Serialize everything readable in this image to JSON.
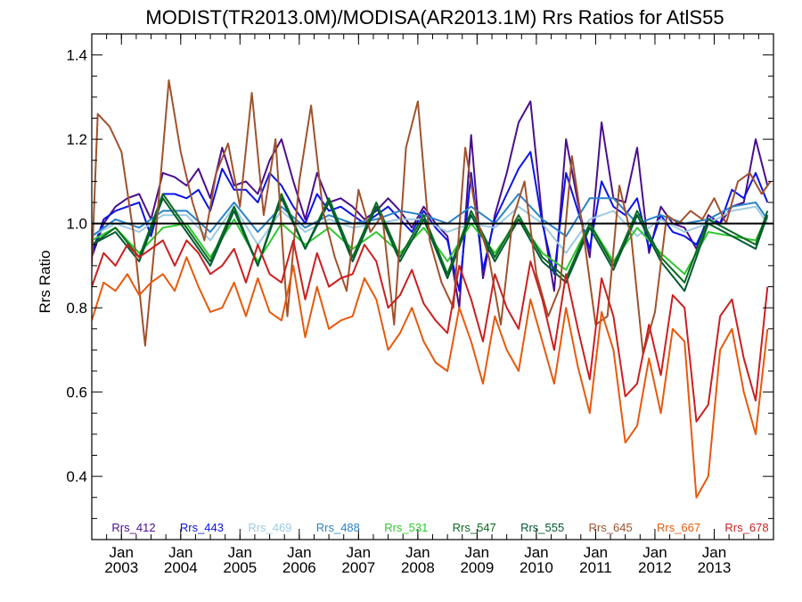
{
  "chart_data": {
    "type": "line",
    "title": "MODIST(TR2013.0M)/MODISA(AR2013.1M)  Rrs Ratios for AtlS55",
    "ylabel": "Rrs Ratio",
    "xlabel": "",
    "xlim": [
      2002.5,
      2014.0
    ],
    "ylim": [
      0.25,
      1.45
    ],
    "yticks": [
      0.4,
      0.6,
      0.8,
      1.0,
      1.2,
      1.4
    ],
    "ytick_labels": [
      "0.4",
      "0.6",
      "0.8",
      "1.0",
      "1.2",
      "1.4"
    ],
    "xticks": [
      {
        "x": 2003,
        "month": "Jan",
        "year": "2003"
      },
      {
        "x": 2004,
        "month": "Jan",
        "year": "2004"
      },
      {
        "x": 2005,
        "month": "Jan",
        "year": "2005"
      },
      {
        "x": 2006,
        "month": "Jan",
        "year": "2006"
      },
      {
        "x": 2007,
        "month": "Jan",
        "year": "2007"
      },
      {
        "x": 2008,
        "month": "Jan",
        "year": "2008"
      },
      {
        "x": 2009,
        "month": "Jan",
        "year": "2009"
      },
      {
        "x": 2010,
        "month": "Jan",
        "year": "2010"
      },
      {
        "x": 2011,
        "month": "Jan",
        "year": "2011"
      },
      {
        "x": 2012,
        "month": "Jan",
        "year": "2012"
      },
      {
        "x": 2013,
        "month": "Jan",
        "year": "2013"
      }
    ],
    "reference_line": 1.0,
    "grid": false,
    "legend_position": "bottom",
    "series": [
      {
        "name": "Rrs_412",
        "color": "#4b0f8c",
        "x": [
          2002.5,
          2002.7,
          2002.9,
          2003.1,
          2003.3,
          2003.5,
          2003.7,
          2003.9,
          2004.1,
          2004.3,
          2004.5,
          2004.7,
          2004.9,
          2005.1,
          2005.3,
          2005.5,
          2005.7,
          2005.9,
          2006.1,
          2006.3,
          2006.5,
          2006.7,
          2006.9,
          2007.1,
          2007.3,
          2007.5,
          2007.7,
          2007.9,
          2008.1,
          2008.3,
          2008.5,
          2008.7,
          2008.9,
          2009.1,
          2009.3,
          2009.5,
          2009.7,
          2009.9,
          2010.1,
          2010.3,
          2010.5,
          2010.7,
          2010.9,
          2011.1,
          2011.3,
          2011.5,
          2011.7,
          2011.9,
          2012.1,
          2012.3,
          2012.5,
          2012.7,
          2012.9,
          2013.1,
          2013.3,
          2013.5,
          2013.7,
          2013.9
        ],
        "y": [
          0.92,
          1.0,
          1.04,
          1.06,
          1.07,
          1.01,
          1.12,
          1.11,
          1.09,
          1.13,
          1.06,
          1.18,
          1.09,
          1.1,
          1.07,
          1.15,
          1.2,
          1.1,
          1.01,
          1.12,
          1.05,
          1.06,
          1.04,
          1.01,
          1.03,
          1.06,
          1.03,
          0.99,
          1.04,
          1.0,
          0.97,
          0.8,
          1.21,
          0.87,
          1.02,
          1.12,
          1.24,
          1.29,
          1.01,
          0.84,
          1.2,
          1.05,
          0.92,
          1.24,
          1.06,
          1.05,
          1.18,
          0.93,
          1.04,
          1.0,
          0.99,
          0.94,
          1.02,
          1.0,
          1.04,
          1.05,
          1.2,
          1.09
        ]
      },
      {
        "name": "Rrs_443",
        "color": "#0a14e6",
        "x": [
          2002.5,
          2002.7,
          2002.9,
          2003.1,
          2003.3,
          2003.5,
          2003.7,
          2003.9,
          2004.1,
          2004.3,
          2004.5,
          2004.7,
          2004.9,
          2005.1,
          2005.3,
          2005.5,
          2005.7,
          2005.9,
          2006.1,
          2006.3,
          2006.5,
          2006.7,
          2006.9,
          2007.1,
          2007.3,
          2007.5,
          2007.7,
          2007.9,
          2008.1,
          2008.3,
          2008.5,
          2008.7,
          2008.9,
          2009.1,
          2009.3,
          2009.5,
          2009.7,
          2009.9,
          2010.1,
          2010.3,
          2010.5,
          2010.7,
          2010.9,
          2011.1,
          2011.3,
          2011.5,
          2011.7,
          2011.9,
          2012.1,
          2012.3,
          2012.5,
          2012.7,
          2012.9,
          2013.1,
          2013.3,
          2013.5,
          2013.7,
          2013.9
        ],
        "y": [
          0.93,
          1.01,
          1.03,
          1.04,
          1.05,
          0.97,
          1.07,
          1.07,
          1.06,
          1.08,
          1.03,
          1.13,
          1.08,
          1.08,
          1.05,
          1.12,
          1.09,
          1.04,
          1.0,
          1.07,
          1.03,
          1.04,
          1.02,
          1.0,
          1.02,
          1.04,
          1.01,
          0.98,
          1.03,
          0.99,
          0.96,
          0.84,
          1.12,
          0.89,
          1.01,
          1.07,
          1.13,
          1.17,
          1.0,
          0.88,
          1.12,
          1.03,
          0.94,
          1.1,
          1.04,
          1.02,
          1.06,
          0.94,
          1.02,
          0.98,
          0.97,
          0.95,
          1.01,
          1.0,
          1.08,
          1.06,
          1.12,
          1.05
        ]
      },
      {
        "name": "Rrs_469",
        "color": "#9ecae1",
        "x": [
          2002.5,
          2002.9,
          2003.3,
          2003.7,
          2004.1,
          2004.5,
          2004.9,
          2005.3,
          2005.7,
          2006.1,
          2006.5,
          2006.9,
          2007.3,
          2007.7,
          2008.1,
          2008.5,
          2008.9,
          2009.3,
          2009.7,
          2010.1,
          2010.5,
          2010.9,
          2011.3,
          2011.7,
          2012.1,
          2012.5,
          2012.9,
          2013.3,
          2013.7,
          2013.9
        ],
        "y": [
          0.97,
          1.0,
          0.98,
          1.02,
          1.02,
          0.96,
          1.04,
          0.95,
          1.03,
          0.98,
          1.01,
          0.99,
          1.0,
          1.01,
          1.01,
          0.98,
          1.0,
          0.99,
          1.04,
          1.0,
          0.93,
          1.01,
          1.03,
          0.97,
          1.01,
          0.98,
          1.0,
          1.03,
          1.04,
          1.0
        ]
      },
      {
        "name": "Rrs_488",
        "color": "#2b83c8",
        "x": [
          2002.5,
          2002.9,
          2003.3,
          2003.7,
          2004.1,
          2004.5,
          2004.9,
          2005.3,
          2005.7,
          2006.1,
          2006.5,
          2006.9,
          2007.3,
          2007.7,
          2008.1,
          2008.5,
          2008.9,
          2009.3,
          2009.7,
          2010.1,
          2010.5,
          2010.9,
          2011.3,
          2011.7,
          2012.1,
          2012.5,
          2012.9,
          2013.3,
          2013.7,
          2013.9
        ],
        "y": [
          0.97,
          1.01,
          0.99,
          1.03,
          1.03,
          0.98,
          1.05,
          0.98,
          1.04,
          0.99,
          1.02,
          1.0,
          1.01,
          1.03,
          1.02,
          1.0,
          1.04,
          1.0,
          1.07,
          1.01,
          0.97,
          1.06,
          1.06,
          1.0,
          1.02,
          1.0,
          1.01,
          1.04,
          1.05,
          1.01
        ]
      },
      {
        "name": "Rrs_531",
        "color": "#2ec82e",
        "x": [
          2002.5,
          2002.9,
          2003.3,
          2003.7,
          2004.1,
          2004.5,
          2004.9,
          2005.3,
          2005.7,
          2006.1,
          2006.5,
          2006.9,
          2007.3,
          2007.7,
          2008.1,
          2008.5,
          2008.9,
          2009.3,
          2009.7,
          2010.1,
          2010.5,
          2010.9,
          2011.3,
          2011.7,
          2012.1,
          2012.5,
          2012.9,
          2013.3,
          2013.7,
          2013.9
        ],
        "y": [
          0.96,
          0.99,
          0.93,
          0.99,
          1.0,
          0.92,
          1.01,
          0.91,
          1.0,
          0.95,
          0.99,
          0.94,
          0.98,
          0.93,
          0.99,
          0.91,
          1.0,
          0.93,
          1.01,
          0.93,
          0.89,
          1.0,
          0.91,
          0.99,
          0.93,
          0.88,
          0.98,
          0.97,
          0.96,
          1.02
        ]
      },
      {
        "name": "Rrs_547",
        "color": "#0a6b1e",
        "x": [
          2002.5,
          2002.9,
          2003.3,
          2003.7,
          2004.1,
          2004.5,
          2004.9,
          2005.3,
          2005.7,
          2006.1,
          2006.5,
          2006.9,
          2007.3,
          2007.7,
          2008.1,
          2008.5,
          2008.9,
          2009.3,
          2009.7,
          2010.1,
          2010.5,
          2010.9,
          2011.3,
          2011.7,
          2012.1,
          2012.5,
          2012.9,
          2013.3,
          2013.7,
          2013.9
        ],
        "y": [
          0.95,
          0.99,
          0.92,
          1.07,
          0.99,
          0.91,
          1.04,
          0.9,
          1.07,
          0.94,
          1.06,
          0.92,
          1.05,
          0.92,
          1.02,
          0.88,
          1.03,
          0.92,
          1.02,
          0.92,
          0.87,
          1.0,
          0.9,
          1.03,
          0.92,
          0.86,
          1.01,
          0.98,
          0.95,
          1.03
        ]
      },
      {
        "name": "Rrs_555",
        "color": "#005a32",
        "x": [
          2002.5,
          2002.9,
          2003.3,
          2003.7,
          2004.1,
          2004.5,
          2004.9,
          2005.3,
          2005.7,
          2006.1,
          2006.5,
          2006.9,
          2007.3,
          2007.7,
          2008.1,
          2008.5,
          2008.9,
          2009.3,
          2009.7,
          2010.1,
          2010.5,
          2010.9,
          2011.3,
          2011.7,
          2012.1,
          2012.5,
          2012.9,
          2013.3,
          2013.7,
          2013.9
        ],
        "y": [
          0.95,
          0.98,
          0.91,
          1.06,
          0.98,
          0.9,
          1.03,
          0.9,
          1.06,
          0.94,
          1.05,
          0.91,
          1.04,
          0.91,
          1.01,
          0.87,
          1.02,
          0.91,
          1.01,
          0.91,
          0.86,
          0.99,
          0.89,
          1.02,
          0.91,
          0.84,
          1.0,
          0.97,
          0.94,
          1.02
        ]
      },
      {
        "name": "Rrs_645",
        "color": "#a0522d",
        "x": [
          2002.5,
          2002.6,
          2002.8,
          2003.0,
          2003.2,
          2003.4,
          2003.6,
          2003.8,
          2004.0,
          2004.2,
          2004.4,
          2004.6,
          2004.8,
          2005.0,
          2005.2,
          2005.4,
          2005.6,
          2005.8,
          2006.0,
          2006.2,
          2006.4,
          2006.6,
          2006.8,
          2007.0,
          2007.2,
          2007.4,
          2007.6,
          2007.8,
          2008.0,
          2008.2,
          2008.4,
          2008.6,
          2008.8,
          2009.0,
          2009.2,
          2009.4,
          2009.6,
          2009.8,
          2010.0,
          2010.2,
          2010.4,
          2010.6,
          2010.8,
          2011.0,
          2011.2,
          2011.4,
          2011.6,
          2011.8,
          2012.0,
          2012.2,
          2012.4,
          2012.6,
          2012.8,
          2013.0,
          2013.2,
          2013.4,
          2013.6,
          2013.8,
          2013.95
        ],
        "y": [
          0.9,
          1.26,
          1.23,
          1.17,
          0.98,
          0.71,
          1.01,
          1.34,
          1.17,
          1.05,
          0.96,
          1.12,
          1.19,
          1.04,
          1.31,
          1.02,
          1.2,
          0.78,
          1.1,
          1.28,
          1.03,
          0.92,
          0.84,
          1.08,
          0.98,
          1.02,
          0.76,
          1.18,
          1.29,
          0.96,
          0.86,
          0.8,
          1.18,
          1.01,
          0.92,
          0.76,
          1.01,
          1.1,
          0.88,
          0.78,
          0.85,
          1.16,
          0.97,
          0.76,
          0.78,
          1.09,
          0.97,
          0.69,
          0.79,
          1.02,
          1.0,
          1.03,
          1.01,
          1.06,
          1.0,
          1.1,
          1.12,
          1.07,
          1.1
        ]
      },
      {
        "name": "Rrs_667",
        "color": "#e8590c",
        "x": [
          2002.5,
          2002.7,
          2002.9,
          2003.1,
          2003.3,
          2003.5,
          2003.7,
          2003.9,
          2004.1,
          2004.3,
          2004.5,
          2004.7,
          2004.9,
          2005.1,
          2005.3,
          2005.5,
          2005.7,
          2005.9,
          2006.1,
          2006.3,
          2006.5,
          2006.7,
          2006.9,
          2007.1,
          2007.3,
          2007.5,
          2007.7,
          2007.9,
          2008.1,
          2008.3,
          2008.5,
          2008.7,
          2008.9,
          2009.1,
          2009.3,
          2009.5,
          2009.7,
          2009.9,
          2010.1,
          2010.3,
          2010.5,
          2010.7,
          2010.9,
          2011.1,
          2011.3,
          2011.5,
          2011.7,
          2011.9,
          2012.1,
          2012.3,
          2012.5,
          2012.7,
          2012.9,
          2013.1,
          2013.3,
          2013.5,
          2013.7,
          2013.9
        ],
        "y": [
          0.77,
          0.86,
          0.84,
          0.88,
          0.83,
          0.86,
          0.88,
          0.84,
          0.92,
          0.85,
          0.79,
          0.8,
          0.86,
          0.78,
          0.87,
          0.79,
          0.77,
          0.9,
          0.73,
          0.85,
          0.75,
          0.77,
          0.78,
          0.87,
          0.82,
          0.7,
          0.74,
          0.8,
          0.72,
          0.67,
          0.65,
          0.8,
          0.72,
          0.62,
          0.78,
          0.7,
          0.65,
          0.82,
          0.72,
          0.62,
          0.8,
          0.66,
          0.55,
          0.79,
          0.7,
          0.48,
          0.52,
          0.68,
          0.55,
          0.75,
          0.72,
          0.35,
          0.4,
          0.7,
          0.75,
          0.6,
          0.5,
          0.75
        ]
      },
      {
        "name": "Rrs_678",
        "color": "#cc1f1f",
        "x": [
          2002.5,
          2002.7,
          2002.9,
          2003.1,
          2003.3,
          2003.5,
          2003.7,
          2003.9,
          2004.1,
          2004.3,
          2004.5,
          2004.7,
          2004.9,
          2005.1,
          2005.3,
          2005.5,
          2005.7,
          2005.9,
          2006.1,
          2006.3,
          2006.5,
          2006.7,
          2006.9,
          2007.1,
          2007.3,
          2007.5,
          2007.7,
          2007.9,
          2008.1,
          2008.3,
          2008.5,
          2008.7,
          2008.9,
          2009.1,
          2009.3,
          2009.5,
          2009.7,
          2009.9,
          2010.1,
          2010.3,
          2010.5,
          2010.7,
          2010.9,
          2011.1,
          2011.3,
          2011.5,
          2011.7,
          2011.9,
          2012.1,
          2012.3,
          2012.5,
          2012.7,
          2012.9,
          2013.1,
          2013.3,
          2013.5,
          2013.7,
          2013.9
        ],
        "y": [
          0.85,
          0.93,
          0.9,
          0.95,
          0.92,
          0.94,
          0.96,
          0.9,
          0.96,
          0.93,
          0.88,
          0.9,
          0.94,
          0.86,
          0.95,
          0.88,
          0.86,
          0.96,
          0.82,
          0.93,
          0.85,
          0.87,
          0.88,
          0.95,
          0.91,
          0.8,
          0.83,
          0.89,
          0.81,
          0.77,
          0.74,
          0.9,
          0.82,
          0.72,
          0.88,
          0.8,
          0.75,
          0.91,
          0.82,
          0.7,
          0.88,
          0.75,
          0.63,
          0.87,
          0.78,
          0.59,
          0.62,
          0.76,
          0.64,
          0.83,
          0.8,
          0.53,
          0.57,
          0.78,
          0.82,
          0.68,
          0.58,
          0.85
        ]
      }
    ]
  }
}
